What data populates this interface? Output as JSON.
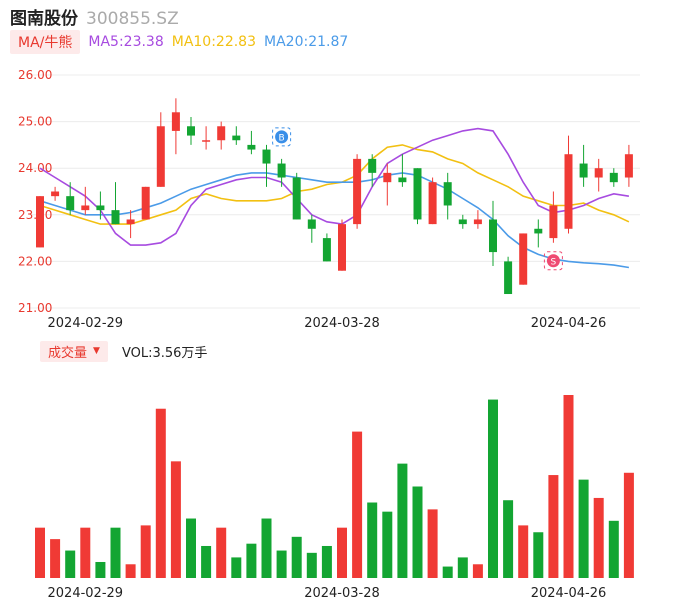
{
  "header": {
    "name": "图南股份",
    "code": "300855.SZ"
  },
  "ma_legend": {
    "button_label": "MA/牛熊",
    "ma5": "MA5:23.38",
    "ma10": "MA10:22.83",
    "ma20": "MA20:21.87"
  },
  "volume_legend": {
    "button_label": "成交量",
    "vol_text": "VOL:3.56万手"
  },
  "colors": {
    "up": "#f03a35",
    "down": "#13a532",
    "ma5": "#a74be0",
    "ma10": "#f2c012",
    "ma20": "#4b9be8",
    "axis_label": "#e8392f"
  },
  "chart_data": [
    {
      "type": "candlestick",
      "y_ticks": [
        "26.00",
        "25.00",
        "24.00",
        "23.00",
        "22.00",
        "21.00"
      ],
      "ylim": [
        21,
        26
      ],
      "x_labels": [
        {
          "index": 3,
          "label": "2024-02-29"
        },
        {
          "index": 20,
          "label": "2024-03-28"
        },
        {
          "index": 35,
          "label": "2024-04-26"
        }
      ],
      "markers": [
        {
          "index": 16,
          "glyph": "B",
          "color": "#3a8fe8"
        },
        {
          "index": 34,
          "glyph": "S",
          "color": "#ef4a72"
        }
      ],
      "candles": [
        {
          "o": 22.3,
          "c": 23.4,
          "h": 23.4,
          "l": 22.3
        },
        {
          "o": 23.4,
          "c": 23.5,
          "h": 23.6,
          "l": 23.3
        },
        {
          "o": 23.4,
          "c": 23.1,
          "h": 23.7,
          "l": 23.0
        },
        {
          "o": 23.1,
          "c": 23.2,
          "h": 23.6,
          "l": 23.0
        },
        {
          "o": 23.2,
          "c": 23.1,
          "h": 23.5,
          "l": 22.9
        },
        {
          "o": 23.1,
          "c": 22.8,
          "h": 23.7,
          "l": 22.8
        },
        {
          "o": 22.8,
          "c": 22.9,
          "h": 23.1,
          "l": 22.5
        },
        {
          "o": 22.9,
          "c": 23.6,
          "h": 23.6,
          "l": 22.9
        },
        {
          "o": 23.6,
          "c": 24.9,
          "h": 25.2,
          "l": 23.6
        },
        {
          "o": 24.8,
          "c": 25.2,
          "h": 25.5,
          "l": 24.3
        },
        {
          "o": 24.9,
          "c": 24.7,
          "h": 25.1,
          "l": 24.5
        },
        {
          "o": 24.6,
          "c": 24.6,
          "h": 24.9,
          "l": 24.4
        },
        {
          "o": 24.6,
          "c": 24.9,
          "h": 25.0,
          "l": 24.4
        },
        {
          "o": 24.7,
          "c": 24.6,
          "h": 24.9,
          "l": 24.5
        },
        {
          "o": 24.5,
          "c": 24.4,
          "h": 24.8,
          "l": 24.3
        },
        {
          "o": 24.4,
          "c": 24.1,
          "h": 24.5,
          "l": 23.6
        },
        {
          "o": 24.1,
          "c": 23.8,
          "h": 24.2,
          "l": 23.6
        },
        {
          "o": 23.8,
          "c": 22.9,
          "h": 23.9,
          "l": 22.9
        },
        {
          "o": 22.9,
          "c": 22.7,
          "h": 23.0,
          "l": 22.4
        },
        {
          "o": 22.5,
          "c": 22.0,
          "h": 22.6,
          "l": 22.0
        },
        {
          "o": 21.8,
          "c": 22.8,
          "h": 22.9,
          "l": 21.8
        },
        {
          "o": 22.8,
          "c": 24.2,
          "h": 24.3,
          "l": 22.7
        },
        {
          "o": 24.2,
          "c": 23.9,
          "h": 24.3,
          "l": 23.6
        },
        {
          "o": 23.7,
          "c": 23.9,
          "h": 24.1,
          "l": 23.2
        },
        {
          "o": 23.8,
          "c": 23.7,
          "h": 24.3,
          "l": 23.6
        },
        {
          "o": 24.0,
          "c": 22.9,
          "h": 24.0,
          "l": 22.8
        },
        {
          "o": 22.8,
          "c": 23.7,
          "h": 23.8,
          "l": 22.8
        },
        {
          "o": 23.7,
          "c": 23.2,
          "h": 23.9,
          "l": 22.9
        },
        {
          "o": 22.9,
          "c": 22.8,
          "h": 23.0,
          "l": 22.7
        },
        {
          "o": 22.8,
          "c": 22.9,
          "h": 23.1,
          "l": 22.7
        },
        {
          "o": 22.9,
          "c": 22.2,
          "h": 23.3,
          "l": 21.9
        },
        {
          "o": 22.0,
          "c": 21.3,
          "h": 22.1,
          "l": 21.3
        },
        {
          "o": 21.5,
          "c": 22.6,
          "h": 22.6,
          "l": 21.5
        },
        {
          "o": 22.7,
          "c": 22.6,
          "h": 22.9,
          "l": 22.3
        },
        {
          "o": 22.5,
          "c": 23.2,
          "h": 23.5,
          "l": 22.4
        },
        {
          "o": 22.7,
          "c": 24.3,
          "h": 24.7,
          "l": 22.6
        },
        {
          "o": 24.1,
          "c": 23.8,
          "h": 24.5,
          "l": 23.6
        },
        {
          "o": 23.8,
          "c": 24.0,
          "h": 24.2,
          "l": 23.5
        },
        {
          "o": 23.9,
          "c": 23.7,
          "h": 24.0,
          "l": 23.6
        },
        {
          "o": 23.8,
          "c": 24.3,
          "h": 24.5,
          "l": 23.6
        }
      ],
      "ma5": [
        24.0,
        23.8,
        23.6,
        23.4,
        23.1,
        22.6,
        22.35,
        22.35,
        22.4,
        22.6,
        23.2,
        23.55,
        23.65,
        23.75,
        23.8,
        23.8,
        23.7,
        23.35,
        23.0,
        22.85,
        22.8,
        23.0,
        23.6,
        24.1,
        24.3,
        24.45,
        24.6,
        24.7,
        24.8,
        24.85,
        24.8,
        24.3,
        23.7,
        23.2,
        23.05,
        23.1,
        23.2,
        23.35,
        23.45,
        23.4
      ],
      "ma10": [
        23.2,
        23.1,
        23.0,
        22.9,
        22.8,
        22.8,
        22.8,
        22.9,
        23.0,
        23.1,
        23.35,
        23.45,
        23.35,
        23.3,
        23.3,
        23.3,
        23.35,
        23.5,
        23.55,
        23.65,
        23.7,
        23.85,
        24.2,
        24.45,
        24.5,
        24.4,
        24.35,
        24.2,
        24.1,
        23.9,
        23.75,
        23.6,
        23.4,
        23.3,
        23.2,
        23.2,
        23.25,
        23.1,
        23.0,
        22.85
      ],
      "ma20": [
        23.3,
        23.2,
        23.1,
        23.0,
        23.0,
        23.0,
        23.05,
        23.15,
        23.25,
        23.4,
        23.55,
        23.65,
        23.75,
        23.85,
        23.9,
        23.9,
        23.85,
        23.8,
        23.75,
        23.7,
        23.7,
        23.7,
        23.75,
        23.85,
        23.9,
        23.85,
        23.7,
        23.55,
        23.35,
        23.15,
        22.9,
        22.55,
        22.3,
        22.15,
        22.05,
        22.0,
        21.97,
        21.95,
        21.92,
        21.87
      ]
    },
    {
      "type": "bar",
      "name": "成交量",
      "values": [
        2.2,
        1.7,
        1.2,
        2.2,
        0.7,
        2.2,
        0.6,
        2.3,
        7.4,
        5.1,
        2.6,
        1.4,
        2.2,
        0.9,
        1.5,
        2.6,
        1.2,
        1.8,
        1.1,
        1.4,
        2.2,
        6.4,
        3.3,
        2.9,
        5.0,
        4.0,
        3.0,
        0.5,
        0.9,
        0.6,
        7.8,
        3.4,
        2.3,
        2.0,
        4.5,
        8.0,
        4.3,
        3.5,
        2.5,
        4.6
      ],
      "directions": [
        "up",
        "up",
        "down",
        "up",
        "down",
        "down",
        "up",
        "up",
        "up",
        "up",
        "down",
        "down",
        "up",
        "down",
        "down",
        "down",
        "down",
        "down",
        "down",
        "down",
        "up",
        "up",
        "down",
        "down",
        "down",
        "down",
        "up",
        "down",
        "down",
        "up",
        "down",
        "down",
        "up",
        "down",
        "up",
        "up",
        "down",
        "up",
        "down",
        "up"
      ]
    }
  ]
}
